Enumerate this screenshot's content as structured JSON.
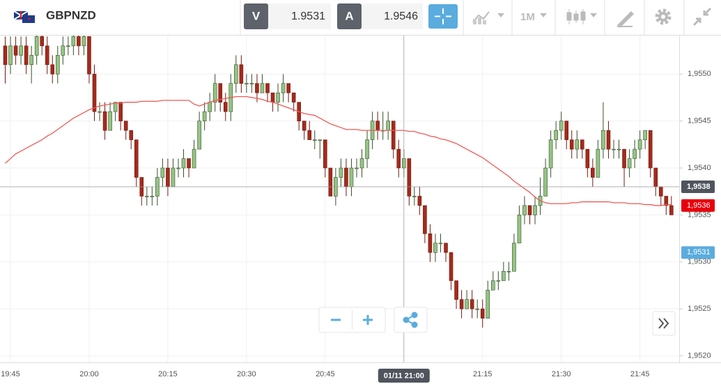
{
  "toolbar": {
    "symbol": "GBPNZD",
    "bid_label": "V",
    "bid": "1.9531",
    "ask_label": "A",
    "ask": "1.9546",
    "timeframe": "1M"
  },
  "chart_data": {
    "type": "candlestick",
    "categories": [
      null,
      "19:45",
      null,
      null,
      null,
      null,
      null,
      null,
      null,
      null,
      null,
      null,
      null,
      null,
      null,
      null,
      "20:00",
      null,
      null,
      null,
      null,
      null,
      null,
      null,
      null,
      null,
      null,
      null,
      null,
      null,
      null,
      "20:15",
      null,
      null,
      null,
      null,
      null,
      null,
      null,
      null,
      null,
      null,
      null,
      null,
      null,
      null,
      "20:30",
      null,
      null,
      null,
      null,
      null,
      null,
      null,
      null,
      null,
      null,
      null,
      null,
      null,
      null,
      "20:45",
      null,
      null,
      null,
      null,
      null,
      null,
      null,
      null,
      null,
      null,
      null,
      null,
      null,
      null,
      "21:00",
      null,
      null,
      null,
      null,
      null,
      null,
      null,
      null,
      null,
      null,
      null,
      null,
      null,
      null,
      "21:15",
      null,
      null,
      null,
      null,
      null,
      null,
      null,
      null,
      null,
      null,
      null,
      null,
      null,
      null,
      "21:30",
      null,
      null,
      null,
      null,
      null,
      null,
      null,
      null,
      null,
      null,
      null,
      null,
      null,
      null,
      "21:45",
      null,
      null,
      null,
      null,
      null,
      null
    ],
    "ohlc": [
      [
        1.9553,
        1.9554,
        1.9549,
        1.9551
      ],
      [
        1.9551,
        1.9554,
        1.955,
        1.9553
      ],
      [
        1.9553,
        1.9554,
        1.9551,
        1.9552
      ],
      [
        1.9552,
        1.9554,
        1.9551,
        1.9553
      ],
      [
        1.9553,
        1.9554,
        1.955,
        1.9551
      ],
      [
        1.9551,
        1.9553,
        1.9549,
        1.9552
      ],
      [
        1.9552,
        1.9555,
        1.9551,
        1.9554
      ],
      [
        1.9554,
        1.9555,
        1.9552,
        1.9553
      ],
      [
        1.9553,
        1.9554,
        1.955,
        1.9551
      ],
      [
        1.9551,
        1.9552,
        1.9549,
        1.955
      ],
      [
        1.955,
        1.9553,
        1.9549,
        1.9552
      ],
      [
        1.9552,
        1.9554,
        1.9551,
        1.9553
      ],
      [
        1.9553,
        1.9554,
        1.9552,
        1.9553
      ],
      [
        1.9553,
        1.9555,
        1.9552,
        1.9554
      ],
      [
        1.9554,
        1.9555,
        1.9552,
        1.9553
      ],
      [
        1.9553,
        1.9555,
        1.9552,
        1.9554
      ],
      [
        1.9554,
        1.9554,
        1.9549,
        1.955
      ],
      [
        1.955,
        1.9551,
        1.9545,
        1.9546
      ],
      [
        1.9546,
        1.9547,
        1.9545,
        1.9546
      ],
      [
        1.9546,
        1.9547,
        1.9543,
        1.9544
      ],
      [
        1.9544,
        1.9547,
        1.9544,
        1.9546
      ],
      [
        1.9546,
        1.9547,
        1.9545,
        1.9547
      ],
      [
        1.9547,
        1.9547,
        1.9544,
        1.9545
      ],
      [
        1.9545,
        1.9545,
        1.9543,
        1.9544
      ],
      [
        1.9544,
        1.9544,
        1.9542,
        1.9543
      ],
      [
        1.9543,
        1.9543,
        1.9538,
        1.9539
      ],
      [
        1.9539,
        1.9539,
        1.9536,
        1.9537
      ],
      [
        1.9537,
        1.9538,
        1.9536,
        1.9537
      ],
      [
        1.9537,
        1.9538,
        1.9536,
        1.9537
      ],
      [
        1.9537,
        1.954,
        1.9536,
        1.9539
      ],
      [
        1.9539,
        1.9541,
        1.9538,
        1.954
      ],
      [
        1.954,
        1.9541,
        1.9537,
        1.9538
      ],
      [
        1.9538,
        1.9541,
        1.9538,
        1.954
      ],
      [
        1.954,
        1.9541,
        1.9539,
        1.954
      ],
      [
        1.954,
        1.9542,
        1.9539,
        1.9541
      ],
      [
        1.9541,
        1.9541,
        1.9539,
        1.954
      ],
      [
        1.954,
        1.9543,
        1.954,
        1.9542
      ],
      [
        1.9542,
        1.9546,
        1.9542,
        1.9545
      ],
      [
        1.9545,
        1.9547,
        1.9544,
        1.9546
      ],
      [
        1.9546,
        1.9548,
        1.9545,
        1.9547
      ],
      [
        1.9547,
        1.955,
        1.9546,
        1.9549
      ],
      [
        1.9549,
        1.9549,
        1.9546,
        1.9547
      ],
      [
        1.9547,
        1.9548,
        1.9545,
        1.9546
      ],
      [
        1.9546,
        1.955,
        1.9545,
        1.9549
      ],
      [
        1.9549,
        1.9552,
        1.9548,
        1.9551
      ],
      [
        1.9551,
        1.9552,
        1.9548,
        1.9549
      ],
      [
        1.9549,
        1.955,
        1.9548,
        1.9549
      ],
      [
        1.9549,
        1.955,
        1.9548,
        1.9549
      ],
      [
        1.9549,
        1.955,
        1.9547,
        1.9548
      ],
      [
        1.9548,
        1.955,
        1.9548,
        1.9549
      ],
      [
        1.9549,
        1.9549,
        1.9547,
        1.9548
      ],
      [
        1.9548,
        1.9548,
        1.9546,
        1.9547
      ],
      [
        1.9547,
        1.9549,
        1.9546,
        1.9548
      ],
      [
        1.9548,
        1.955,
        1.9547,
        1.9549
      ],
      [
        1.9549,
        1.9549,
        1.9547,
        1.9548
      ],
      [
        1.9548,
        1.9548,
        1.9546,
        1.9547
      ],
      [
        1.9547,
        1.9547,
        1.9544,
        1.9545
      ],
      [
        1.9545,
        1.9545,
        1.9543,
        1.9544
      ],
      [
        1.9544,
        1.9545,
        1.9543,
        1.9543
      ],
      [
        1.9543,
        1.9544,
        1.9542,
        1.9543
      ],
      [
        1.9543,
        1.9543,
        1.9541,
        1.9543
      ],
      [
        1.9543,
        1.9543,
        1.9539,
        1.954
      ],
      [
        1.954,
        1.954,
        1.9537,
        1.9537
      ],
      [
        1.9537,
        1.954,
        1.9536,
        1.9539
      ],
      [
        1.9539,
        1.9541,
        1.9538,
        1.954
      ],
      [
        1.954,
        1.9541,
        1.9537,
        1.9538
      ],
      [
        1.9538,
        1.9541,
        1.9537,
        1.954
      ],
      [
        1.954,
        1.9541,
        1.9539,
        1.954
      ],
      [
        1.954,
        1.9542,
        1.9539,
        1.9541
      ],
      [
        1.9541,
        1.9544,
        1.954,
        1.9543
      ],
      [
        1.9543,
        1.9546,
        1.9542,
        1.9545
      ],
      [
        1.9545,
        1.9546,
        1.9543,
        1.9544
      ],
      [
        1.9544,
        1.9546,
        1.9543,
        1.9544
      ],
      [
        1.9544,
        1.9546,
        1.9543,
        1.9545
      ],
      [
        1.9545,
        1.9545,
        1.9541,
        1.9542
      ],
      [
        1.9542,
        1.9543,
        1.9539,
        1.954
      ],
      [
        1.954,
        1.9542,
        1.9539,
        1.9541
      ],
      [
        1.9541,
        1.9541,
        1.9536,
        1.9537
      ],
      [
        1.9537,
        1.9538,
        1.9536,
        1.9537
      ],
      [
        1.9537,
        1.9538,
        1.9535,
        1.9536
      ],
      [
        1.9536,
        1.9536,
        1.9532,
        1.9533
      ],
      [
        1.9533,
        1.9534,
        1.953,
        1.9531
      ],
      [
        1.9531,
        1.9533,
        1.953,
        1.9532
      ],
      [
        1.9532,
        1.9533,
        1.9531,
        1.9532
      ],
      [
        1.9532,
        1.9532,
        1.953,
        1.9531
      ],
      [
        1.9531,
        1.9531,
        1.9527,
        1.9528
      ],
      [
        1.9528,
        1.9528,
        1.9525,
        1.9526
      ],
      [
        1.9526,
        1.9527,
        1.9524,
        1.9525
      ],
      [
        1.9525,
        1.9527,
        1.9525,
        1.9526
      ],
      [
        1.9526,
        1.9527,
        1.9524,
        1.9525
      ],
      [
        1.9525,
        1.9526,
        1.9524,
        1.9525
      ],
      [
        1.9525,
        1.9526,
        1.9523,
        1.9524
      ],
      [
        1.9524,
        1.9528,
        1.9524,
        1.9527
      ],
      [
        1.9527,
        1.9529,
        1.9527,
        1.9528
      ],
      [
        1.9528,
        1.9529,
        1.9527,
        1.9528
      ],
      [
        1.9528,
        1.953,
        1.9528,
        1.9529
      ],
      [
        1.9529,
        1.953,
        1.9528,
        1.9529
      ],
      [
        1.9529,
        1.9533,
        1.9529,
        1.9532
      ],
      [
        1.9532,
        1.9536,
        1.9532,
        1.9535
      ],
      [
        1.9535,
        1.9537,
        1.9534,
        1.9536
      ],
      [
        1.9536,
        1.9536,
        1.9534,
        1.9535
      ],
      [
        1.9535,
        1.9537,
        1.9534,
        1.9536
      ],
      [
        1.9536,
        1.9539,
        1.9535,
        1.9537
      ],
      [
        1.9537,
        1.9541,
        1.9537,
        1.954
      ],
      [
        1.954,
        1.9544,
        1.9539,
        1.9543
      ],
      [
        1.9543,
        1.9545,
        1.9542,
        1.9544
      ],
      [
        1.9544,
        1.9546,
        1.9543,
        1.9545
      ],
      [
        1.9545,
        1.9545,
        1.9542,
        1.9543
      ],
      [
        1.9543,
        1.9544,
        1.9541,
        1.9542
      ],
      [
        1.9542,
        1.9544,
        1.9541,
        1.9543
      ],
      [
        1.9543,
        1.9543,
        1.9541,
        1.9542
      ],
      [
        1.9542,
        1.9542,
        1.9539,
        1.954
      ],
      [
        1.954,
        1.9541,
        1.9538,
        1.9539
      ],
      [
        1.9539,
        1.9543,
        1.9539,
        1.9542
      ],
      [
        1.9542,
        1.9547,
        1.9541,
        1.9544
      ],
      [
        1.9544,
        1.9545,
        1.9541,
        1.9542
      ],
      [
        1.9542,
        1.9543,
        1.9541,
        1.9542
      ],
      [
        1.9542,
        1.9543,
        1.9541,
        1.9542
      ],
      [
        1.9542,
        1.9542,
        1.9538,
        1.954
      ],
      [
        1.954,
        1.9542,
        1.9539,
        1.9541
      ],
      [
        1.9541,
        1.9543,
        1.954,
        1.9542
      ],
      [
        1.9542,
        1.9544,
        1.9541,
        1.9543
      ],
      [
        1.9543,
        1.9544,
        1.9542,
        1.9544
      ],
      [
        1.9544,
        1.9544,
        1.9539,
        1.954
      ],
      [
        1.954,
        1.954,
        1.9537,
        1.9538
      ],
      [
        1.9538,
        1.9538,
        1.9536,
        1.9537
      ],
      [
        1.9537,
        1.9537,
        1.9535,
        1.9536
      ],
      [
        1.9536,
        1.9537,
        1.9535,
        1.9535
      ]
    ],
    "up_color": "#94c483",
    "down_color": "#a52a1c",
    "moving_average": {
      "color": "#ec5a55",
      "values": [
        1.95405,
        1.9541,
        1.95415,
        1.95418,
        1.95421,
        1.95424,
        1.95427,
        1.9543,
        1.95434,
        1.95437,
        1.95441,
        1.95445,
        1.95449,
        1.95453,
        1.95456,
        1.95459,
        1.95462,
        1.95464,
        1.95466,
        1.95467,
        1.95468,
        1.95469,
        1.95469,
        1.9547,
        1.9547,
        1.9547,
        1.95471,
        1.95471,
        1.95471,
        1.95471,
        1.95472,
        1.95472,
        1.95472,
        1.95472,
        1.95472,
        1.95472,
        1.95468,
        1.95466,
        1.95468,
        1.9547,
        1.95472,
        1.95473,
        1.95474,
        1.95475,
        1.95476,
        1.95476,
        1.95476,
        1.95475,
        1.95474,
        1.95473,
        1.95471,
        1.9547,
        1.95468,
        1.95466,
        1.95464,
        1.95462,
        1.9546,
        1.95458,
        1.95457,
        1.95456,
        1.95453,
        1.9545,
        1.95447,
        1.95445,
        1.95443,
        1.95441,
        1.95441,
        1.95441,
        1.9544,
        1.9544,
        1.9544,
        1.9544,
        1.9544,
        1.9544,
        1.9544,
        1.9544,
        1.9544,
        1.95439,
        1.95439,
        1.95437,
        1.95436,
        1.95434,
        1.95433,
        1.95431,
        1.9543,
        1.95428,
        1.95426,
        1.95423,
        1.9542,
        1.95417,
        1.95414,
        1.95411,
        1.95407,
        1.95403,
        1.95399,
        1.95395,
        1.95391,
        1.95386,
        1.95382,
        1.95378,
        1.95374,
        1.95369,
        1.95365,
        1.95363,
        1.95362,
        1.95362,
        1.95362,
        1.95362,
        1.95363,
        1.95363,
        1.95364,
        1.95364,
        1.95364,
        1.95364,
        1.95364,
        1.95364,
        1.95363,
        1.95363,
        1.95363,
        1.95362,
        1.95362,
        1.95362,
        1.95361,
        1.95361,
        1.9536,
        1.9536,
        1.95361,
        1.95361
      ]
    },
    "ylim": [
      1.95193,
      1.95541
    ],
    "yticks": [
      {
        "value": 1.952,
        "label": "1,9520"
      },
      {
        "value": 1.9525,
        "label": "1,9525"
      },
      {
        "value": 1.953,
        "label": "1,9530"
      },
      {
        "value": 1.9535,
        "label": "1,9535"
      },
      {
        "value": 1.954,
        "label": "1,9540"
      },
      {
        "value": 1.9545,
        "label": "1,9545"
      },
      {
        "value": 1.955,
        "label": "1,9550"
      }
    ],
    "grid": true,
    "crosshair": {
      "x_label": "01/11 21:00",
      "y": {
        "value": 1.9538,
        "label": "1,9538"
      }
    },
    "price_markers": [
      {
        "value": 1.9536,
        "label": "1,9536",
        "color": "#e8000b"
      },
      {
        "value": 1.9531,
        "label": "1,9531",
        "color": "#5aacde"
      }
    ]
  }
}
